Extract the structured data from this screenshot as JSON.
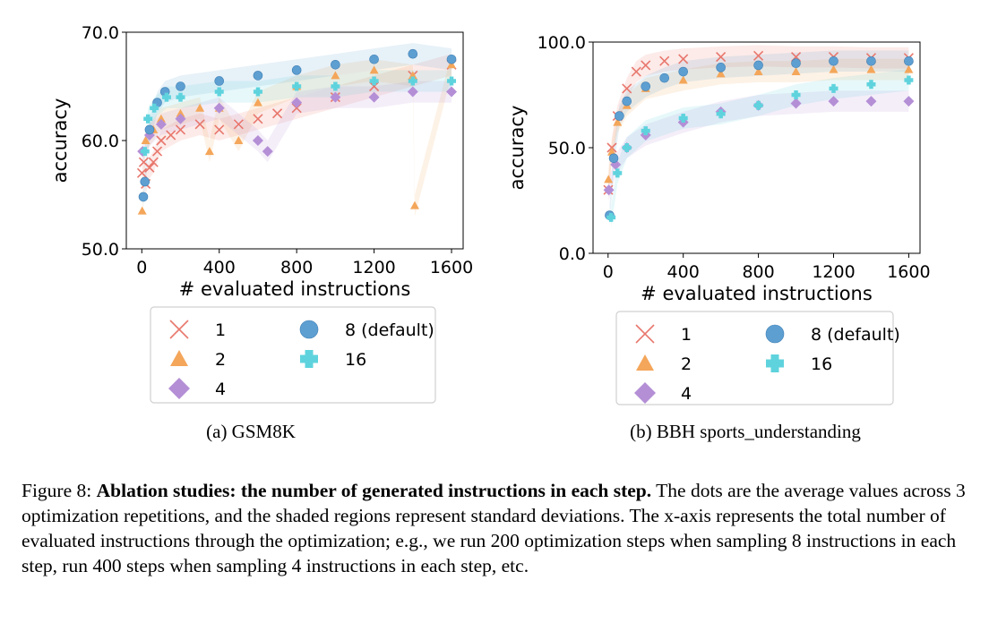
{
  "legend": {
    "labels": [
      "1",
      "2",
      "4",
      "8 (default)",
      "16"
    ],
    "colors": [
      "#e8776d",
      "#f4a65a",
      "#b48fd6",
      "#5e9fd2",
      "#5fd3dd"
    ],
    "markers": [
      "x",
      "triangle",
      "diamond",
      "circle",
      "plus"
    ]
  },
  "chart_data": [
    {
      "type": "scatter",
      "subtitle": "(a) GSM8K",
      "xlabel": "# evaluated instructions",
      "ylabel": "accuracy",
      "xlim": [
        -80,
        1660
      ],
      "ylim": [
        50,
        70
      ],
      "xticks": [
        0,
        400,
        800,
        1200,
        1600
      ],
      "yticks": [
        50.0,
        60.0,
        70.0
      ],
      "xtick_labels": [
        "0",
        "400",
        "800",
        "1200",
        "1600"
      ],
      "ytick_labels": [
        "50.0",
        "60.0",
        "70.0"
      ],
      "shaded_std": true,
      "series": [
        {
          "name": "1",
          "x": [
            1,
            10,
            20,
            40,
            60,
            80,
            100,
            150,
            200,
            300,
            400,
            500,
            600,
            700,
            800,
            1000,
            1200,
            1400,
            1600
          ],
          "y": [
            57.0,
            58.0,
            56.0,
            57.5,
            58.0,
            59.0,
            60.0,
            60.5,
            61.0,
            61.5,
            61.0,
            61.5,
            62.0,
            62.5,
            63.0,
            64.0,
            65.0,
            66.0,
            67.0
          ]
        },
        {
          "name": "2",
          "x": [
            2,
            20,
            60,
            100,
            200,
            300,
            350,
            400,
            500,
            600,
            800,
            1000,
            1200,
            1400,
            1410,
            1600
          ],
          "y": [
            53.5,
            60.0,
            61.0,
            62.0,
            62.5,
            63.0,
            59.0,
            63.0,
            60.0,
            63.5,
            65.0,
            66.0,
            66.5,
            66.0,
            54.0,
            67.0
          ]
        },
        {
          "name": "4",
          "x": [
            4,
            40,
            100,
            200,
            400,
            600,
            650,
            800,
            1000,
            1200,
            1400,
            1600
          ],
          "y": [
            59.0,
            60.5,
            61.5,
            62.0,
            63.0,
            60.0,
            59.0,
            63.5,
            64.0,
            64.0,
            64.5,
            64.5
          ]
        },
        {
          "name": "8 (default)",
          "x": [
            8,
            16,
            40,
            80,
            120,
            200,
            400,
            600,
            800,
            1000,
            1200,
            1400,
            1600
          ],
          "y": [
            54.8,
            56.2,
            61.0,
            63.5,
            64.5,
            65.0,
            65.5,
            66.0,
            66.5,
            67.0,
            67.5,
            68.0,
            67.5
          ]
        },
        {
          "name": "16",
          "x": [
            16,
            32,
            64,
            128,
            200,
            400,
            600,
            800,
            1000,
            1200,
            1400,
            1600
          ],
          "y": [
            59.0,
            62.0,
            63.0,
            64.0,
            64.0,
            64.5,
            64.5,
            65.0,
            65.0,
            65.5,
            65.5,
            65.5
          ]
        }
      ]
    },
    {
      "type": "scatter",
      "subtitle": "(b) BBH sports_understanding",
      "xlabel": "# evaluated instructions",
      "ylabel": "accuracy",
      "xlim": [
        -80,
        1660
      ],
      "ylim": [
        0,
        100
      ],
      "xticks": [
        0,
        400,
        800,
        1200,
        1600
      ],
      "yticks": [
        0.0,
        50.0,
        100.0
      ],
      "xtick_labels": [
        "0",
        "400",
        "800",
        "1200",
        "1600"
      ],
      "ytick_labels": [
        "0.0",
        "50.0",
        "100.0"
      ],
      "shaded_std": true,
      "series": [
        {
          "name": "1",
          "x": [
            1,
            20,
            50,
            100,
            150,
            200,
            300,
            400,
            600,
            800,
            1000,
            1200,
            1400,
            1600
          ],
          "y": [
            30.0,
            50.0,
            65.0,
            78.0,
            86.0,
            89.0,
            91.0,
            92.0,
            93.0,
            93.5,
            93.0,
            93.0,
            92.5,
            92.5
          ]
        },
        {
          "name": "2",
          "x": [
            2,
            20,
            50,
            100,
            200,
            400,
            600,
            800,
            1000,
            1200,
            1400,
            1600
          ],
          "y": [
            35.0,
            48.0,
            62.0,
            70.0,
            78.0,
            82.0,
            85.0,
            86.0,
            86.0,
            87.0,
            87.0,
            87.0
          ]
        },
        {
          "name": "4",
          "x": [
            4,
            40,
            100,
            200,
            400,
            600,
            800,
            1000,
            1200,
            1400,
            1600
          ],
          "y": [
            30.0,
            42.0,
            50.0,
            56.0,
            62.0,
            67.0,
            70.0,
            71.0,
            72.0,
            72.0,
            72.0
          ]
        },
        {
          "name": "8 (default)",
          "x": [
            8,
            30,
            60,
            100,
            200,
            300,
            400,
            600,
            800,
            1000,
            1200,
            1400,
            1600
          ],
          "y": [
            18.0,
            45.0,
            65.0,
            72.0,
            79.0,
            83.0,
            86.0,
            88.0,
            89.0,
            90.0,
            91.0,
            91.0,
            91.0
          ]
        },
        {
          "name": "16",
          "x": [
            16,
            50,
            100,
            200,
            400,
            600,
            800,
            1000,
            1200,
            1400,
            1600
          ],
          "y": [
            17.0,
            38.0,
            50.0,
            58.0,
            64.0,
            66.0,
            70.0,
            75.0,
            78.0,
            80.0,
            82.0
          ]
        }
      ]
    }
  ],
  "caption": {
    "prefix": "Figure 8:",
    "title": "Ablation studies: the number of generated instructions in each step.",
    "body": "The dots are the average values across 3 optimization repetitions, and the shaded regions represent standard deviations. The x-axis represents the total number of evaluated instructions through the optimization; e.g., we run 200 optimization steps when sampling 8 instructions in each step, run 400 steps when sampling 4 instructions in each step, etc."
  }
}
